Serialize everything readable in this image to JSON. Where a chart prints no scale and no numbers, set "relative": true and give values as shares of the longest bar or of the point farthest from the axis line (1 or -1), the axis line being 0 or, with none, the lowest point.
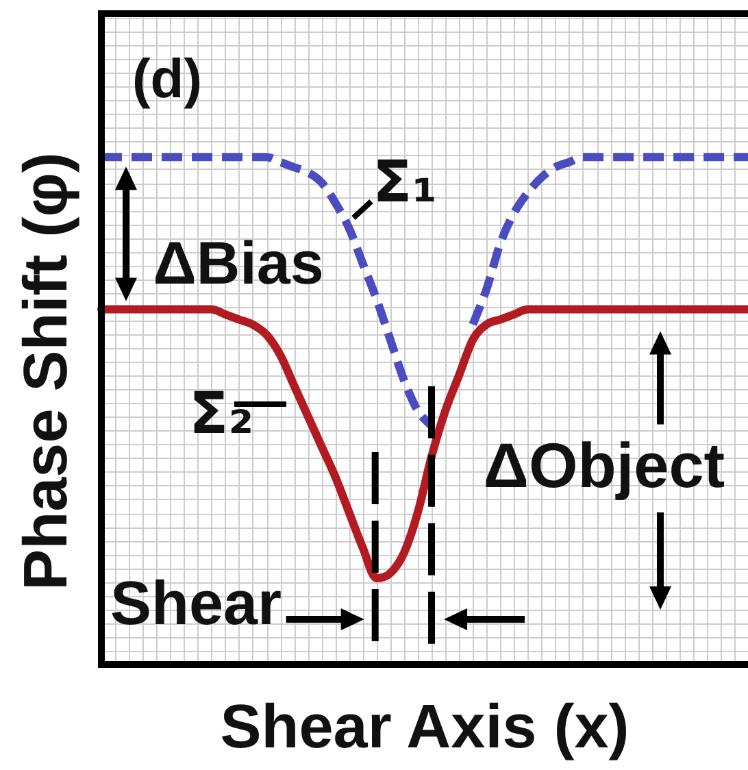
{
  "chart_data": {
    "type": "line",
    "xlabel": "Shear Axis (x)",
    "ylabel": "Phase Shift (φ)",
    "annotations": [
      "(d)",
      "ΔBias",
      "ΔObject",
      "Shear"
    ],
    "categories": [
      null,
      null,
      null,
      null,
      null,
      null,
      null,
      null,
      null,
      null,
      null,
      null,
      null,
      null,
      null,
      null,
      null,
      null,
      null,
      null,
      null,
      null,
      null,
      null,
      null,
      null,
      null,
      null,
      null,
      null,
      null,
      null,
      null,
      null,
      null,
      null,
      null,
      null,
      null,
      null,
      null,
      null,
      null,
      null,
      null,
      null,
      null,
      null
    ],
    "series": [
      {
        "name": "Σ₁",
        "color": "#4a4cc0",
        "line_style": "dashed",
        "values": [
          1,
          1,
          1,
          1,
          1,
          1,
          1,
          1,
          1,
          1,
          1,
          1,
          1,
          0.99,
          0.98,
          0.97,
          0.95,
          0.91,
          0.86,
          0.79,
          0.72,
          0.64,
          0.56,
          0.5,
          0.47,
          null,
          null,
          0.67,
          0.74,
          0.83,
          0.89,
          0.93,
          0.96,
          0.98,
          0.99,
          1,
          1,
          1,
          1,
          1,
          1,
          1,
          1,
          1,
          1,
          1,
          1,
          1
        ]
      },
      {
        "name": "Σ₂",
        "color": "#b31b22",
        "line_style": "solid",
        "values": [
          0.7,
          0.7,
          0.7,
          0.7,
          0.7,
          0.7,
          0.7,
          0.7,
          0.7,
          0.69,
          0.68,
          0.67,
          0.65,
          0.61,
          0.55,
          0.49,
          0.43,
          0.37,
          0.3,
          0.23,
          0.17,
          0.18,
          0.22,
          0.3,
          0.41,
          0.5,
          0.57,
          0.64,
          0.67,
          0.68,
          0.69,
          0.7,
          0.7,
          0.7,
          0.7,
          0.7,
          0.7,
          0.7,
          0.7,
          0.7,
          0.7,
          0.7,
          0.7,
          0.7,
          0.7,
          0.7,
          0.7,
          0.7
        ]
      }
    ],
    "relative": true,
    "grid": true,
    "tick_labels": false
  }
}
